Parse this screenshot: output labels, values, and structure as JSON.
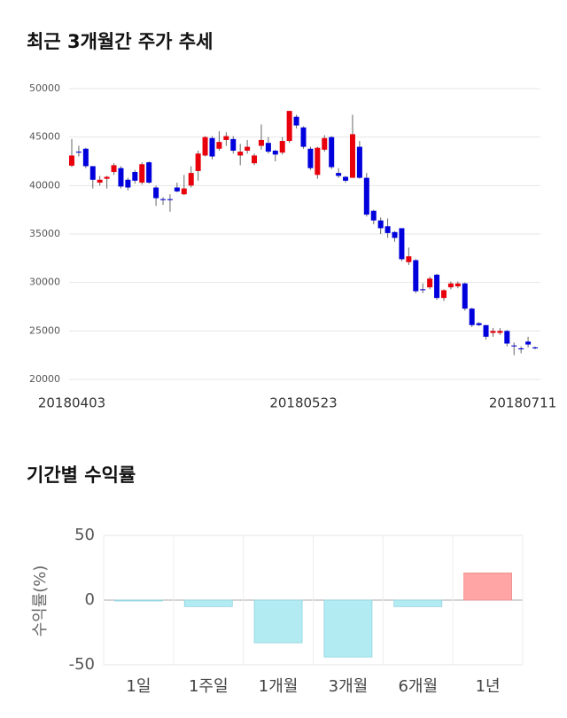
{
  "chart_data": [
    {
      "type": "candlestick",
      "title": "최근 3개월간 주가 추세",
      "categories": [
        "20180403",
        null,
        null,
        null,
        null,
        null,
        null,
        null,
        null,
        null,
        null,
        null,
        null,
        null,
        null,
        null,
        null,
        null,
        null,
        null,
        null,
        null,
        null,
        null,
        null,
        null,
        null,
        null,
        null,
        null,
        null,
        null,
        null,
        "20180523",
        null,
        null,
        null,
        null,
        null,
        null,
        null,
        null,
        null,
        null,
        null,
        null,
        null,
        null,
        null,
        null,
        null,
        null,
        null,
        null,
        null,
        null,
        null,
        null,
        null,
        null,
        null,
        null,
        null,
        null,
        null,
        null,
        "20180711"
      ],
      "open": [
        42050,
        43500,
        43800,
        42000,
        40300,
        40700,
        41400,
        41800,
        40600,
        41400,
        40300,
        42400,
        39800,
        38600,
        38600,
        39800,
        39100,
        40000,
        41500,
        43100,
        44900,
        43800,
        44700,
        44800,
        43100,
        43600,
        42300,
        44100,
        44400,
        43600,
        43400,
        44600,
        47100,
        46000,
        43800,
        41100,
        43700,
        45000,
        41300,
        40900,
        40800,
        44000,
        40800,
        37400,
        36400,
        35800,
        35200,
        35600,
        32100,
        32300,
        29300,
        29500,
        30800,
        28400,
        29500,
        29600,
        29900,
        27300,
        25800,
        25600,
        24800,
        24800,
        25000,
        23500,
        23200,
        23900,
        23300
      ],
      "high": [
        44800,
        44100,
        43900,
        42000,
        41000,
        41000,
        42300,
        42000,
        40800,
        41600,
        42400,
        42500,
        40000,
        38800,
        39100,
        40300,
        41100,
        42000,
        43600,
        45100,
        45100,
        45600,
        45500,
        45100,
        44300,
        44700,
        43300,
        46300,
        45000,
        43700,
        45000,
        47700,
        47300,
        46100,
        44000,
        44000,
        45200,
        45100,
        41800,
        41000,
        47300,
        44600,
        41300,
        37500,
        36700,
        36600,
        35300,
        35600,
        33600,
        32400,
        29900,
        30600,
        30900,
        29300,
        30100,
        30100,
        30000,
        27400,
        25900,
        25600,
        25300,
        25300,
        25100,
        23800,
        23400,
        24400,
        23400
      ],
      "low": [
        41900,
        43000,
        41800,
        39700,
        40000,
        39700,
        41100,
        39700,
        39500,
        40200,
        40100,
        40200,
        37900,
        38000,
        37300,
        39300,
        39000,
        39800,
        40500,
        43000,
        42700,
        43600,
        44100,
        43300,
        42100,
        43300,
        42100,
        43700,
        43300,
        42500,
        43200,
        44400,
        45900,
        43800,
        41600,
        40700,
        43500,
        41700,
        40800,
        40300,
        40800,
        40700,
        36800,
        36000,
        35000,
        34600,
        34200,
        32200,
        31800,
        28900,
        28900,
        29300,
        28200,
        28100,
        29300,
        29400,
        27100,
        25400,
        25500,
        24100,
        24400,
        24600,
        23400,
        22500,
        22700,
        23300,
        23100
      ],
      "close": [
        43100,
        43400,
        42000,
        40600,
        40600,
        40900,
        42100,
        39900,
        39800,
        40500,
        42200,
        40300,
        38700,
        38500,
        38500,
        39400,
        39700,
        41300,
        43300,
        45000,
        43000,
        44500,
        45100,
        43600,
        43500,
        44000,
        43100,
        44700,
        43500,
        43200,
        44600,
        47700,
        46200,
        44000,
        41800,
        43900,
        44900,
        41900,
        41000,
        40500,
        45300,
        40800,
        37000,
        36400,
        35600,
        35100,
        34600,
        32400,
        32700,
        29100,
        29200,
        30400,
        28400,
        29200,
        29900,
        29900,
        27300,
        25600,
        25600,
        24400,
        25000,
        25000,
        23700,
        23400,
        23100,
        23600,
        23200
      ],
      "ylim": [
        20000,
        50000
      ],
      "yticks": [
        20000,
        25000,
        30000,
        35000,
        40000,
        45000,
        50000
      ],
      "grid": true,
      "up_color": "#e8000b",
      "down_color": "#0000dd",
      "wick_color": "#666666"
    },
    {
      "type": "bar",
      "title": "기간별 수익률",
      "ylabel": "수익률(%)",
      "categories": [
        "1일",
        "1주일",
        "1개월",
        "3개월",
        "6개월",
        "1년"
      ],
      "values": [
        -0.5,
        -5,
        -33,
        -44,
        -5,
        21
      ],
      "ylim": [
        -50,
        50
      ],
      "yticks": [
        -50,
        0,
        50
      ],
      "grid": true,
      "negative_color": "#b2ebf2",
      "positive_color": "#ffa5a5"
    }
  ]
}
